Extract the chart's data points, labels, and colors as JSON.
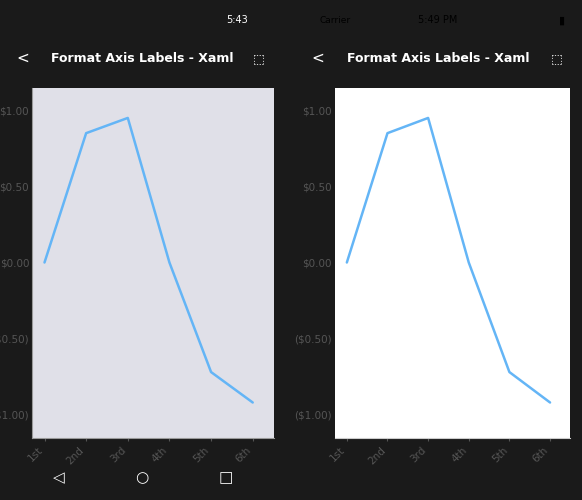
{
  "title": "Format Axis Labels - Xaml",
  "title_color": "#ffffff",
  "title_bg": "#2196F3",
  "x_labels": [
    "1st",
    "2nd",
    "3rd",
    "4th",
    "5th",
    "6th"
  ],
  "x_values": [
    1,
    2,
    3,
    4,
    5,
    6
  ],
  "y_values": [
    0.0,
    0.85,
    0.95,
    0.0,
    -0.72,
    -0.92
  ],
  "y_ticks": [
    1.0,
    0.5,
    0.0,
    -0.5,
    -1.0
  ],
  "line_color": "#64B5F6",
  "line_width": 1.8,
  "left_chart_bg": "#E0E0E8",
  "right_chart_bg": "#FFFFFF",
  "left_phone_bg": "#DCDCE0",
  "right_phone_bg": "#F5F5F5",
  "left_status_bg": "#1a1a1a",
  "right_status_bg": "#F5F5F5",
  "left_nav_bg": "#1a1a1a",
  "tick_color_left": "#555555",
  "tick_color_right": "#555555",
  "axis_line_left": "#999999",
  "axis_line_right": "#CCCCCC"
}
